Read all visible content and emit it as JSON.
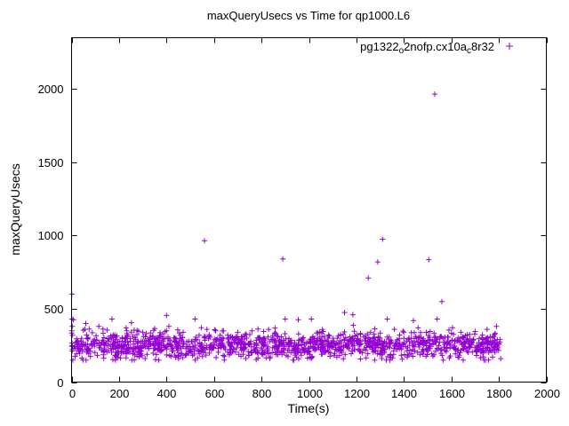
{
  "title": "maxQueryUsecs vs Time for qp1000.L6",
  "axes": {
    "x_label": "Time(s)",
    "y_label": "maxQueryUsecs"
  },
  "legend": {
    "label": "pg1322_o2nofp.cx10a_c8r32",
    "marker": "plus",
    "position": "top-right"
  },
  "chart_data": {
    "type": "scatter",
    "title": "maxQueryUsecs vs Time for qp1000.L6",
    "xlabel": "Time(s)",
    "ylabel": "maxQueryUsecs",
    "xlim": [
      0,
      2000
    ],
    "ylim": [
      0,
      2350
    ],
    "xticks": [
      0,
      200,
      400,
      600,
      800,
      1000,
      1200,
      1400,
      1600,
      1800,
      2000
    ],
    "yticks": [
      0,
      500,
      1000,
      1500,
      2000
    ],
    "grid": "off",
    "marker_color": "#9400d3",
    "marker": "plus",
    "series": [
      {
        "name": "pg1322_o2nofp.cx10a_c8r32",
        "color": "#9400d3",
        "band": {
          "count": 1400,
          "x_min": 0,
          "x_max": 1808,
          "y_mean": 248,
          "y_sd": 44,
          "y_floor": 150,
          "y_cap": 460,
          "tail_prob": 0.02,
          "tail_extra": 130,
          "seed": 1322
        },
        "outliers": [
          [
            1,
            600
          ],
          [
            2,
            430
          ],
          [
            3,
            380
          ],
          [
            1,
            350
          ],
          [
            4,
            320
          ],
          [
            8,
            425
          ],
          [
            60,
            400
          ],
          [
            115,
            380
          ],
          [
            150,
            355
          ],
          [
            170,
            430
          ],
          [
            230,
            370
          ],
          [
            300,
            340
          ],
          [
            350,
            365
          ],
          [
            400,
            455
          ],
          [
            410,
            380
          ],
          [
            470,
            340
          ],
          [
            520,
            430
          ],
          [
            560,
            965
          ],
          [
            570,
            360
          ],
          [
            640,
            350
          ],
          [
            700,
            340
          ],
          [
            760,
            350
          ],
          [
            830,
            360
          ],
          [
            890,
            840
          ],
          [
            900,
            430
          ],
          [
            955,
            425
          ],
          [
            1010,
            430
          ],
          [
            1060,
            345
          ],
          [
            1150,
            475
          ],
          [
            1185,
            460
          ],
          [
            1250,
            710
          ],
          [
            1260,
            340
          ],
          [
            1290,
            820
          ],
          [
            1310,
            975
          ],
          [
            1330,
            430
          ],
          [
            1360,
            360
          ],
          [
            1400,
            340
          ],
          [
            1440,
            420
          ],
          [
            1460,
            370
          ],
          [
            1505,
            835
          ],
          [
            1530,
            1965
          ],
          [
            1540,
            430
          ],
          [
            1560,
            550
          ],
          [
            1590,
            355
          ],
          [
            1640,
            340
          ],
          [
            1700,
            345
          ],
          [
            1750,
            360
          ],
          [
            1790,
            380
          ],
          [
            1805,
            290
          ]
        ]
      }
    ]
  }
}
